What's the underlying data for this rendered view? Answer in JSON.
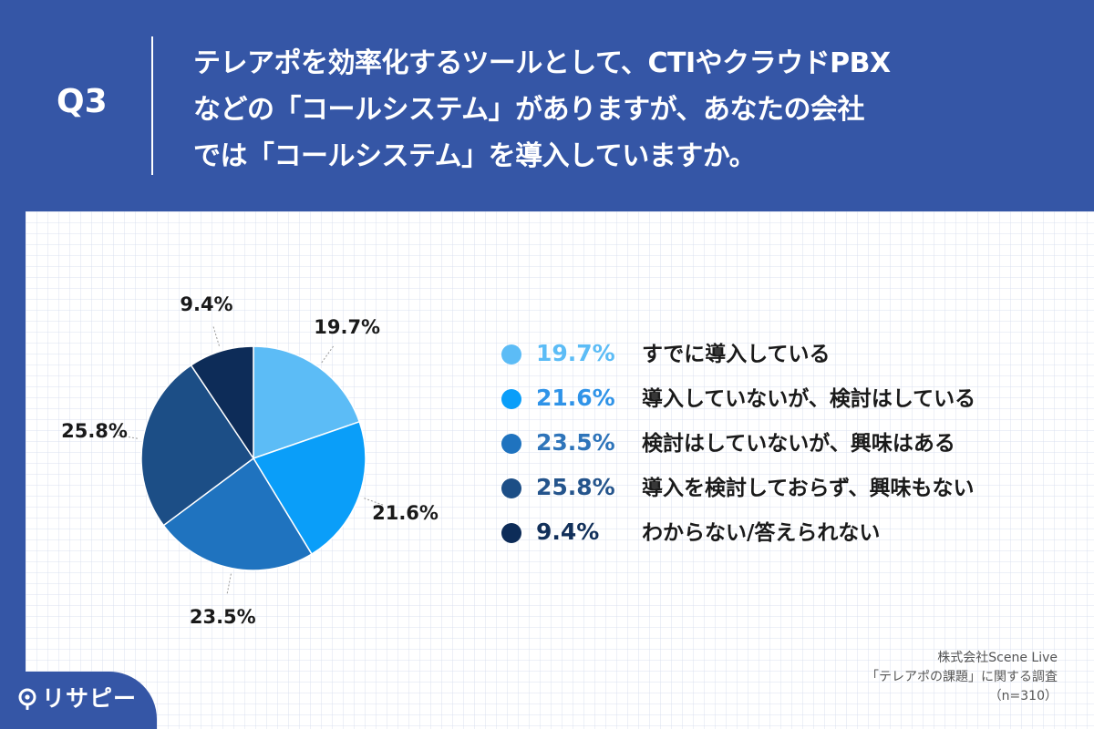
{
  "header": {
    "q_number": "Q3",
    "question_lines": [
      "テレアポを効率化するツールとして、CTIやクラウドPBX",
      "などの「コールシステム」がありますが、あなたの会社",
      "では「コールシステム」を導入していますか。"
    ]
  },
  "chart_data": {
    "type": "pie",
    "start_angle": 0,
    "direction": "clockwise",
    "slices": [
      {
        "label": "すでに導入している",
        "value": 19.7,
        "display": "19.7%",
        "color": "#5cbcf6"
      },
      {
        "label": "導入していないが、検討はしている",
        "value": 21.6,
        "display": "21.6%",
        "color": "#0a9ef9"
      },
      {
        "label": "検討はしていないが、興味はある",
        "value": 23.5,
        "display": "23.5%",
        "color": "#1f73bf"
      },
      {
        "label": "導入を検討しておらず、興味もない",
        "value": 25.8,
        "display": "25.8%",
        "color": "#1c4e86"
      },
      {
        "label": "わからない/答えられない",
        "value": 9.4,
        "display": "9.4%",
        "color": "#0d2c58"
      }
    ]
  },
  "legend": {
    "pct_colors": [
      "#5cbcf6",
      "#2f93e8",
      "#2e74ba",
      "#24548c",
      "#12305a"
    ]
  },
  "source": {
    "lines": [
      "株式会社Scene Live",
      "「テレアポの課題」に関する調査",
      "（n=310）"
    ]
  },
  "logo": {
    "text": "リサピー"
  }
}
